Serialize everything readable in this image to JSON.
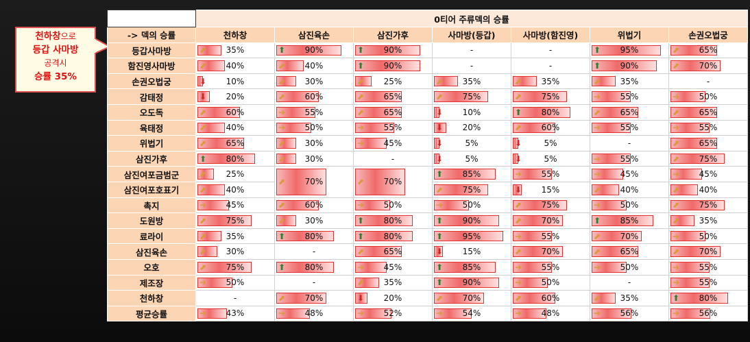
{
  "title": "0티어 주류덱의 승률",
  "corner_label": "-> 덱의 승률",
  "callout": {
    "line1_a": "천하창",
    "line1_b": "으로",
    "line2": "등갑 사마방",
    "line3": "공격시",
    "line4": "승률 35%"
  },
  "columns": [
    "천하창",
    "삼진육손",
    "삼진가후",
    "사마방(등갑)",
    "사마방(함진영)",
    "위법기",
    "손권오법궁"
  ],
  "rows": [
    {
      "label": "등갑사마방",
      "cells": [
        {
          "v": "35%",
          "p": 35,
          "i": "diag"
        },
        {
          "v": "90%",
          "p": 90,
          "i": "up"
        },
        {
          "v": "90%",
          "p": 90,
          "i": "up"
        },
        {
          "v": "-"
        },
        {
          "v": "-"
        },
        {
          "v": "95%",
          "p": 95,
          "i": "up"
        },
        {
          "v": "65%",
          "p": 65,
          "i": "diag"
        }
      ]
    },
    {
      "label": "함진영사마방",
      "cells": [
        {
          "v": "40%",
          "p": 40,
          "i": "diag"
        },
        {
          "v": "40%",
          "p": 40,
          "i": "diag"
        },
        {
          "v": "90%",
          "p": 90,
          "i": "up"
        },
        {
          "v": "-"
        },
        {
          "v": "-"
        },
        {
          "v": "90%",
          "p": 90,
          "i": "up"
        },
        {
          "v": "70%",
          "p": 70,
          "i": "diag"
        }
      ]
    },
    {
      "label": "손권오법궁",
      "cells": [
        {
          "v": "10%",
          "p": 10,
          "i": "down"
        },
        {
          "v": "30%",
          "p": 30,
          "i": "diag"
        },
        {
          "v": "25%",
          "p": 25,
          "i": "diag"
        },
        {
          "v": "35%",
          "p": 35,
          "i": "diag"
        },
        {
          "v": "35%",
          "p": 35,
          "i": "diag"
        },
        {
          "v": "35%",
          "p": 35,
          "i": "diag"
        },
        {
          "v": "-"
        }
      ]
    },
    {
      "label": "감태정",
      "cells": [
        {
          "v": "20%",
          "p": 20,
          "i": "down"
        },
        {
          "v": "60%",
          "p": 60,
          "i": "diag"
        },
        {
          "v": "65%",
          "p": 65,
          "i": "diag"
        },
        {
          "v": "75%",
          "p": 75,
          "i": "diag"
        },
        {
          "v": "75%",
          "p": 75,
          "i": "diag"
        },
        {
          "v": "55%",
          "p": 55,
          "i": "side"
        },
        {
          "v": "50%",
          "p": 50,
          "i": "side"
        }
      ]
    },
    {
      "label": "오도독",
      "cells": [
        {
          "v": "60%",
          "p": 60,
          "i": "diag"
        },
        {
          "v": "55%",
          "p": 55,
          "i": "side"
        },
        {
          "v": "65%",
          "p": 65,
          "i": "diag"
        },
        {
          "v": "10%",
          "p": 10,
          "i": "down"
        },
        {
          "v": "80%",
          "p": 80,
          "i": "up"
        },
        {
          "v": "65%",
          "p": 65,
          "i": "diag"
        },
        {
          "v": "65%",
          "p": 65,
          "i": "diag"
        }
      ]
    },
    {
      "label": "육태정",
      "cells": [
        {
          "v": "40%",
          "p": 40,
          "i": "diag"
        },
        {
          "v": "50%",
          "p": 50,
          "i": "side"
        },
        {
          "v": "55%",
          "p": 55,
          "i": "side"
        },
        {
          "v": "20%",
          "p": 20,
          "i": "down"
        },
        {
          "v": "60%",
          "p": 60,
          "i": "diag"
        },
        {
          "v": "55%",
          "p": 55,
          "i": "side"
        },
        {
          "v": "55%",
          "p": 55,
          "i": "side"
        }
      ]
    },
    {
      "label": "위법기",
      "cells": [
        {
          "v": "65%",
          "p": 65,
          "i": "diag"
        },
        {
          "v": "30%",
          "p": 30,
          "i": "diag"
        },
        {
          "v": "45%",
          "p": 45,
          "i": "side"
        },
        {
          "v": "5%",
          "p": 5,
          "i": "down"
        },
        {
          "v": "5%",
          "p": 5,
          "i": "down"
        },
        {
          "v": "-"
        },
        {
          "v": "65%",
          "p": 65,
          "i": "diag"
        }
      ]
    },
    {
      "label": "삼진가후",
      "cells": [
        {
          "v": "80%",
          "p": 80,
          "i": "up"
        },
        {
          "v": "30%",
          "p": 30,
          "i": "diag"
        },
        {
          "v": "-"
        },
        {
          "v": "5%",
          "p": 5,
          "i": "down"
        },
        {
          "v": "5%",
          "p": 5,
          "i": "down"
        },
        {
          "v": "55%",
          "p": 55,
          "i": "side"
        },
        {
          "v": "75%",
          "p": 75,
          "i": "diag"
        }
      ]
    },
    {
      "label": "삼진여포금범군",
      "cells": [
        {
          "v": "25%",
          "p": 25,
          "i": "diag"
        },
        {
          "v": "70%",
          "p": 70,
          "i": "diag",
          "span": 2
        },
        {
          "v": "70%",
          "p": 70,
          "i": "diag",
          "span": 2
        },
        {
          "v": "85%",
          "p": 85,
          "i": "up"
        },
        {
          "v": "55%",
          "p": 55,
          "i": "side"
        },
        {
          "v": "45%",
          "p": 45,
          "i": "side"
        },
        {
          "v": "45%",
          "p": 45,
          "i": "side"
        }
      ]
    },
    {
      "label": "삼진여포호표기",
      "cells": [
        {
          "v": "40%",
          "p": 40,
          "i": "diag"
        },
        {
          "skip": true
        },
        {
          "skip": true
        },
        {
          "v": "75%",
          "p": 75,
          "i": "diag"
        },
        {
          "v": "15%",
          "p": 15,
          "i": "down"
        },
        {
          "v": "40%",
          "p": 40,
          "i": "diag"
        },
        {
          "v": "40%",
          "p": 40,
          "i": "diag"
        }
      ]
    },
    {
      "label": "촉지",
      "cells": [
        {
          "v": "45%",
          "p": 45,
          "i": "side"
        },
        {
          "v": "60%",
          "p": 60,
          "i": "diag"
        },
        {
          "v": "50%",
          "p": 50,
          "i": "side"
        },
        {
          "v": "50%",
          "p": 50,
          "i": "side"
        },
        {
          "v": "75%",
          "p": 75,
          "i": "diag"
        },
        {
          "v": "50%",
          "p": 50,
          "i": "side"
        },
        {
          "v": "75%",
          "p": 75,
          "i": "diag"
        }
      ]
    },
    {
      "label": "도원방",
      "cells": [
        {
          "v": "75%",
          "p": 75,
          "i": "diag"
        },
        {
          "v": "30%",
          "p": 30,
          "i": "diag"
        },
        {
          "v": "80%",
          "p": 80,
          "i": "up"
        },
        {
          "v": "90%",
          "p": 90,
          "i": "up"
        },
        {
          "v": "70%",
          "p": 70,
          "i": "diag"
        },
        {
          "v": "85%",
          "p": 85,
          "i": "up"
        },
        {
          "v": "35%",
          "p": 35,
          "i": "diag"
        }
      ]
    },
    {
      "label": "료라이",
      "cells": [
        {
          "v": "35%",
          "p": 35,
          "i": "diag"
        },
        {
          "v": "80%",
          "p": 80,
          "i": "up"
        },
        {
          "v": "80%",
          "p": 80,
          "i": "up"
        },
        {
          "v": "95%",
          "p": 95,
          "i": "up"
        },
        {
          "v": "55%",
          "p": 55,
          "i": "side"
        },
        {
          "v": "70%",
          "p": 70,
          "i": "diag"
        },
        {
          "v": "50%",
          "p": 50,
          "i": "side"
        }
      ]
    },
    {
      "label": "삼진육손",
      "cells": [
        {
          "v": "30%",
          "p": 30,
          "i": "diag"
        },
        {
          "v": "-"
        },
        {
          "v": "65%",
          "p": 65,
          "i": "diag"
        },
        {
          "v": "15%",
          "p": 15,
          "i": "down"
        },
        {
          "v": "70%",
          "p": 70,
          "i": "diag"
        },
        {
          "v": "65%",
          "p": 65,
          "i": "diag"
        },
        {
          "v": "70%",
          "p": 70,
          "i": "diag"
        }
      ]
    },
    {
      "label": "오호",
      "cells": [
        {
          "v": "75%",
          "p": 75,
          "i": "diag"
        },
        {
          "v": "80%",
          "p": 80,
          "i": "up"
        },
        {
          "v": "45%",
          "p": 45,
          "i": "side"
        },
        {
          "v": "85%",
          "p": 85,
          "i": "up"
        },
        {
          "v": "55%",
          "p": 55,
          "i": "side"
        },
        {
          "v": "50%",
          "p": 50,
          "i": "side"
        },
        {
          "v": "55%",
          "p": 55,
          "i": "side"
        }
      ]
    },
    {
      "label": "제조장",
      "cells": [
        {
          "v": "50%",
          "p": 50,
          "i": "side"
        },
        {
          "v": "-"
        },
        {
          "v": "35%",
          "p": 35,
          "i": "diag"
        },
        {
          "v": "90%",
          "p": 90,
          "i": "up"
        },
        {
          "v": "50%",
          "p": 50,
          "i": "side"
        },
        {
          "v": "-"
        },
        {
          "v": "55%",
          "p": 55,
          "i": "side"
        }
      ]
    },
    {
      "label": "천하창",
      "cells": [
        {
          "v": "-"
        },
        {
          "v": "70%",
          "p": 70,
          "i": "diag"
        },
        {
          "v": "20%",
          "p": 20,
          "i": "down"
        },
        {
          "v": "70%",
          "p": 70,
          "i": "diag"
        },
        {
          "v": "60%",
          "p": 60,
          "i": "diag"
        },
        {
          "v": "35%",
          "p": 35,
          "i": "diag"
        },
        {
          "v": "80%",
          "p": 80,
          "i": "up"
        }
      ]
    },
    {
      "label": "평균승률",
      "cells": [
        {
          "v": "43%",
          "p": 43,
          "i": "side"
        },
        {
          "v": "48%",
          "p": 48,
          "i": "side"
        },
        {
          "v": "52%",
          "p": 52,
          "i": "side"
        },
        {
          "v": "54%",
          "p": 54,
          "i": "side"
        },
        {
          "v": "48%",
          "p": 48,
          "i": "side"
        },
        {
          "v": "56%",
          "p": 56,
          "i": "side"
        },
        {
          "v": "56%",
          "p": 56,
          "i": "side"
        }
      ]
    }
  ],
  "icons": {
    "up": "up-arrow-icon",
    "down": "down-arrow-icon",
    "side": "side-arrow-icon",
    "diag": "diagonal-arrow-icon"
  },
  "colors": {
    "bar": "#f06a6a",
    "header": "#fcd5b4",
    "title": "#fde9d9",
    "callout_text": "#e01010"
  }
}
